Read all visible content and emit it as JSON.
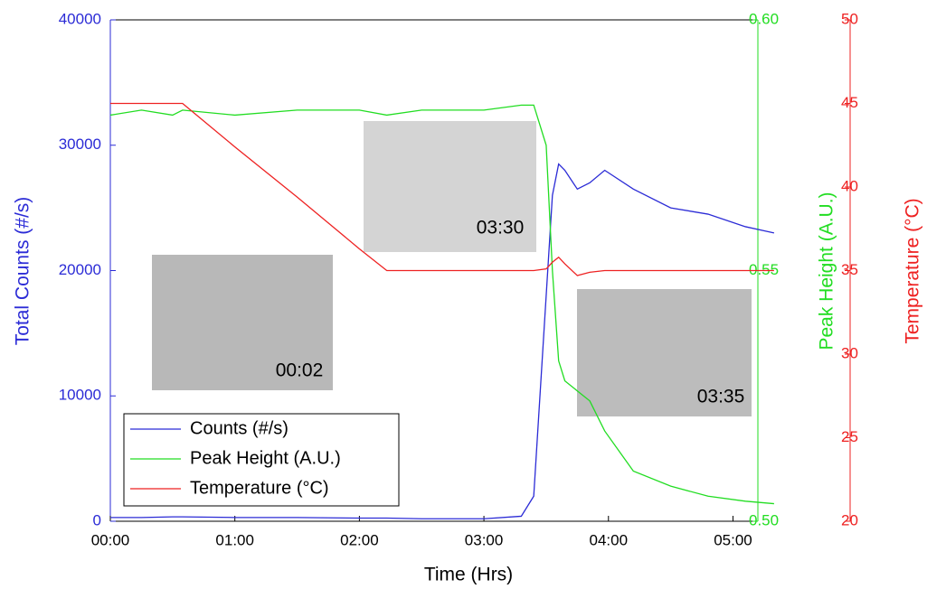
{
  "chart_data": {
    "type": "line",
    "xlabel": "Time (Hrs)",
    "ylabel": "Total Counts (#/s)",
    "y2label": "Peak Height (A.U.)",
    "y3label": "Temperature (°C)",
    "x": [
      0,
      0.25,
      0.5,
      0.58,
      1,
      1.5,
      2,
      2.22,
      2.5,
      3,
      3.3,
      3.4,
      3.5,
      3.55,
      3.6,
      3.65,
      3.75,
      3.85,
      3.97,
      4.2,
      4.5,
      4.8,
      5.1,
      5.33
    ],
    "xlim": [
      0,
      5.2
    ],
    "xticks": [
      {
        "value": 0,
        "label": "00:00"
      },
      {
        "value": 1,
        "label": "01:00"
      },
      {
        "value": 2,
        "label": "02:00"
      },
      {
        "value": 3,
        "label": "03:00"
      },
      {
        "value": 4,
        "label": "04:00"
      },
      {
        "value": 5,
        "label": "05:00"
      }
    ],
    "ylim": [
      0,
      40000
    ],
    "yticks": [
      0,
      10000,
      20000,
      30000,
      40000
    ],
    "y2lim": [
      0.5,
      0.6
    ],
    "y2ticks": [
      {
        "value": 0.5,
        "label": "0.50"
      },
      0.55,
      {
        "value": 0.6,
        "label": "0.60"
      }
    ],
    "y3lim": [
      20,
      50
    ],
    "y3ticks": [
      20,
      25,
      30,
      35,
      40,
      45,
      50
    ],
    "series": [
      {
        "name": "Counts (#/s)",
        "color": "#2b2bd6",
        "values": [
          300,
          300,
          350,
          350,
          300,
          300,
          250,
          250,
          200,
          200,
          400,
          2000,
          18000,
          26000,
          28500,
          28000,
          26500,
          27000,
          28000,
          26500,
          25000,
          24500,
          23500,
          23000
        ]
      },
      {
        "name": "Peak Height (A.U.)",
        "color": "#22dd22",
        "axis": "y2",
        "values": [
          0.581,
          0.582,
          0.581,
          0.582,
          0.581,
          0.582,
          0.582,
          0.581,
          0.582,
          0.582,
          0.583,
          0.583,
          0.575,
          0.55,
          0.532,
          0.528,
          0.526,
          0.524,
          0.518,
          0.51,
          0.507,
          0.505,
          0.504,
          0.5035
        ]
      },
      {
        "name": "Temperature (°C)",
        "color": "#ee2222",
        "axis": "y3",
        "values": [
          45,
          45,
          45,
          45,
          42.4,
          39.4,
          36.3,
          35,
          35,
          35,
          35,
          35,
          35.1,
          35.5,
          35.8,
          35.4,
          34.7,
          34.9,
          35,
          35,
          35,
          35,
          35,
          35
        ]
      }
    ],
    "annotations": [
      "00:02",
      "03:30",
      "03:35"
    ]
  }
}
